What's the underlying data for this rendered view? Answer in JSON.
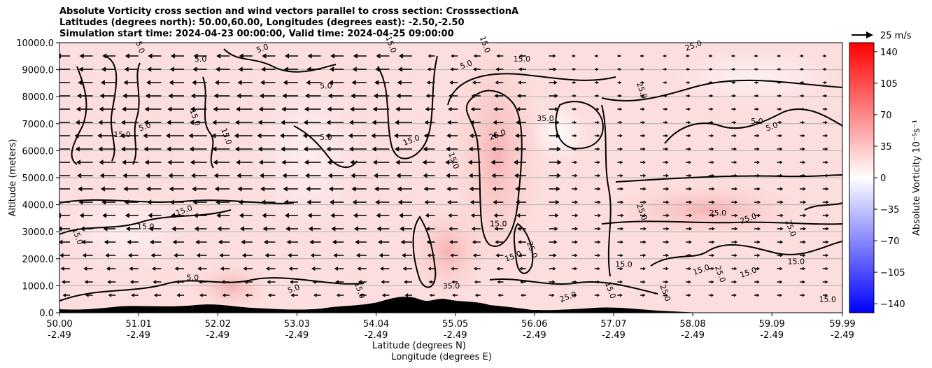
{
  "chart_data": {
    "type": "contour",
    "title_lines": [
      "Absolute Vorticity cross section and wind vectors parallel to cross section: CrosssectionA",
      "Latitudes (degrees north): 50.00,60.00, Longitudes (degrees east): -2.50,-2.50",
      "Simulation start time: 2024-04-23 00:00:00, Valid time: 2024-04-25 09:00:00"
    ],
    "ylabel": "Altitude (meters)",
    "xlabel_lines": [
      "Latitude (degrees N)",
      "Longitude (degrees E)"
    ],
    "ylim": [
      0,
      10000
    ],
    "y_ticks": [
      "0.0",
      "1000.0",
      "2000.0",
      "3000.0",
      "4000.0",
      "5000.0",
      "6000.0",
      "7000.0",
      "8000.0",
      "9000.0",
      "10000.0"
    ],
    "x_ticks": [
      {
        "lat": "50.00",
        "lon": "-2.49"
      },
      {
        "lat": "51.01",
        "lon": "-2.49"
      },
      {
        "lat": "52.02",
        "lon": "-2.49"
      },
      {
        "lat": "53.03",
        "lon": "-2.49"
      },
      {
        "lat": "54.04",
        "lon": "-2.49"
      },
      {
        "lat": "55.05",
        "lon": "-2.49"
      },
      {
        "lat": "56.06",
        "lon": "-2.49"
      },
      {
        "lat": "57.07",
        "lon": "-2.49"
      },
      {
        "lat": "58.08",
        "lon": "-2.49"
      },
      {
        "lat": "59.09",
        "lon": "-2.49"
      },
      {
        "lat": "59.99",
        "lon": "-2.49"
      }
    ],
    "colorbar": {
      "label": "Absolute Vorticity 10⁻⁵s⁻¹",
      "range": [
        -150,
        150
      ],
      "ticks": [
        140,
        105,
        70,
        35,
        0,
        -35,
        -70,
        -105,
        -140
      ],
      "colors": {
        "low": "#0000ff",
        "mid": "#ffffff",
        "high": "#ff0000"
      }
    },
    "quiver_key": {
      "label": "25 m/s",
      "value": 25
    },
    "contour_labels": [
      {
        "text": "5.0",
        "lat": 51.0,
        "alt": 9800
      },
      {
        "text": "5.0",
        "lat": 51.8,
        "alt": 9300
      },
      {
        "text": "5.0",
        "lat": 52.6,
        "alt": 9700
      },
      {
        "text": "15.0",
        "lat": 54.2,
        "alt": 9900
      },
      {
        "text": "5.0",
        "lat": 53.4,
        "alt": 8300
      },
      {
        "text": "5.0",
        "lat": 55.2,
        "alt": 9100
      },
      {
        "text": "15.0",
        "lat": 55.4,
        "alt": 9900
      },
      {
        "text": "15.0",
        "lat": 55.9,
        "alt": 9300
      },
      {
        "text": "25.0",
        "lat": 58.1,
        "alt": 9800
      },
      {
        "text": "25.0",
        "lat": 57.4,
        "alt": 8200
      },
      {
        "text": "35.0",
        "lat": 56.2,
        "alt": 7100
      },
      {
        "text": "25.0",
        "lat": 55.6,
        "alt": 6500
      },
      {
        "text": "15.0",
        "lat": 55.0,
        "alt": 5600
      },
      {
        "text": "5.0",
        "lat": 53.4,
        "alt": 6400
      },
      {
        "text": "15.0",
        "lat": 54.5,
        "alt": 6300
      },
      {
        "text": "15.0",
        "lat": 51.7,
        "alt": 7200
      },
      {
        "text": "15.0",
        "lat": 50.8,
        "alt": 6500
      },
      {
        "text": "5.0",
        "lat": 51.1,
        "alt": 6800
      },
      {
        "text": "15.0",
        "lat": 52.1,
        "alt": 6500
      },
      {
        "text": "5.0",
        "lat": 58.9,
        "alt": 7000
      },
      {
        "text": "5.0",
        "lat": 59.1,
        "alt": 6800
      },
      {
        "text": "25.0",
        "lat": 57.4,
        "alt": 3700
      },
      {
        "text": "25.0",
        "lat": 58.4,
        "alt": 3600
      },
      {
        "text": "25.0",
        "lat": 58.8,
        "alt": 3400
      },
      {
        "text": "25.0",
        "lat": 59.3,
        "alt": 3100
      },
      {
        "text": "15.0",
        "lat": 51.1,
        "alt": 3100
      },
      {
        "text": "15.0",
        "lat": 51.6,
        "alt": 3700
      },
      {
        "text": "15.0",
        "lat": 50.2,
        "alt": 2800
      },
      {
        "text": "15.0",
        "lat": 55.6,
        "alt": 3200
      },
      {
        "text": "15.0",
        "lat": 55.8,
        "alt": 2000
      },
      {
        "text": "25.0",
        "lat": 56.0,
        "alt": 2300
      },
      {
        "text": "15.0",
        "lat": 57.2,
        "alt": 1700
      },
      {
        "text": "15.0",
        "lat": 58.2,
        "alt": 1500
      },
      {
        "text": "25.0",
        "lat": 58.4,
        "alt": 1400
      },
      {
        "text": "15.0",
        "lat": 59.4,
        "alt": 1800
      },
      {
        "text": "15.0",
        "lat": 58.8,
        "alt": 1400
      },
      {
        "text": "25.0",
        "lat": 57.7,
        "alt": 700
      },
      {
        "text": "5.0",
        "lat": 51.7,
        "alt": 1200
      },
      {
        "text": "5.0",
        "lat": 53.0,
        "alt": 800
      },
      {
        "text": "15.0",
        "lat": 53.8,
        "alt": 800
      },
      {
        "text": "35.0",
        "lat": 55.0,
        "alt": 900
      },
      {
        "text": "25.0",
        "lat": 56.5,
        "alt": 500
      },
      {
        "text": "15.0",
        "lat": 57.0,
        "alt": 800
      },
      {
        "text": "15.0",
        "lat": 59.8,
        "alt": 400
      }
    ]
  }
}
